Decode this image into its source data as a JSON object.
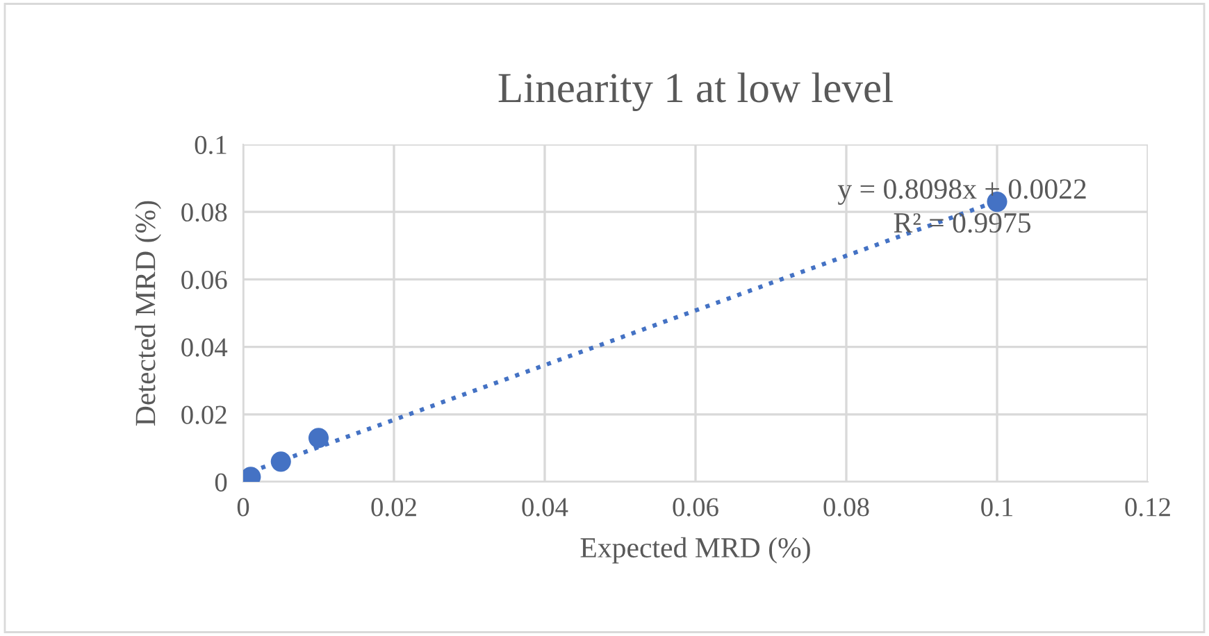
{
  "chart_data": {
    "type": "scatter",
    "title": "Linearity 1 at low level",
    "xlabel": "Expected MRD (%)",
    "ylabel": "Detected MRD (%)",
    "x": [
      0.001,
      0.005,
      0.01,
      0.1
    ],
    "series": [
      {
        "color": "#4472c4",
        "values": [
          0.0015,
          0.006,
          0.013,
          0.083
        ],
        "marker": "circle"
      },
      {
        "type": "line",
        "color": "#4472c4",
        "x": [
          0.001,
          0.1
        ],
        "values": [
          0.003,
          0.0832
        ],
        "line_style": "dotted",
        "marker": "none"
      }
    ],
    "annotations": [
      "y = 0.8098x + 0.0022",
      "R² = 0.9975"
    ],
    "xlim": [
      0,
      0.12
    ],
    "xticks": [
      {
        "value": 0,
        "label": "0"
      },
      0.02,
      0.04,
      0.06,
      0.08,
      0.1,
      0.12
    ],
    "ylim": [
      0,
      0.1
    ],
    "yticks": [
      {
        "value": 0,
        "label": "0"
      },
      0.02,
      0.04,
      0.06,
      0.08,
      0.1
    ],
    "grid": true,
    "legend": false
  }
}
